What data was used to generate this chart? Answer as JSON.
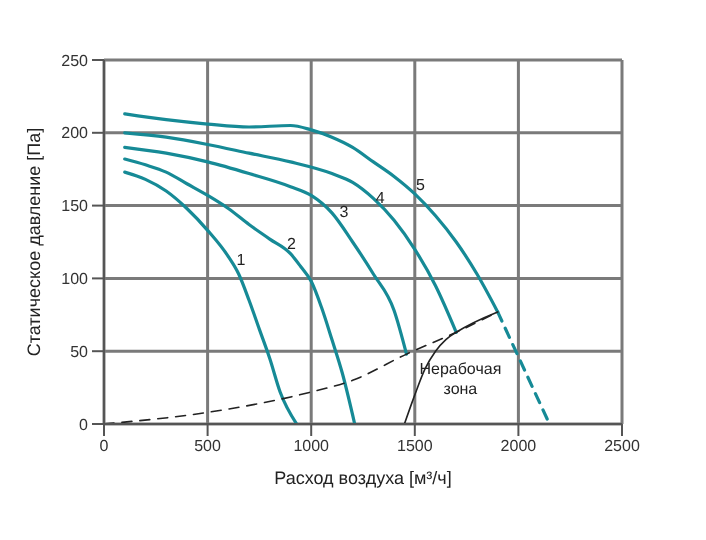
{
  "chart_data": {
    "type": "line",
    "xlabel": "Расход воздуха [м³/ч]",
    "ylabel": "Статическое давление [Па]",
    "xlim": [
      0,
      2500
    ],
    "xticks": [
      0,
      500,
      1000,
      1500,
      2000,
      2500
    ],
    "ylim": [
      0,
      250
    ],
    "yticks": [
      0,
      50,
      100,
      150,
      200,
      250
    ],
    "grid": true,
    "marker": "none",
    "series": [
      {
        "color": "#168a96",
        "x": [
          100,
          200,
          300,
          400,
          500,
          600,
          650,
          700,
          750,
          800,
          850,
          930
        ],
        "values": [
          173,
          168,
          160,
          148,
          133,
          115,
          103,
          85,
          65,
          45,
          22,
          0
        ]
      },
      {
        "color": "#168a96",
        "x": [
          100,
          200,
          300,
          400,
          500,
          600,
          700,
          800,
          900,
          950,
          1000,
          1050,
          1100,
          1150,
          1210
        ],
        "values": [
          182,
          178,
          173,
          165,
          157,
          148,
          137,
          127,
          117,
          108,
          98,
          80,
          58,
          35,
          0
        ]
      },
      {
        "color": "#168a96",
        "x": [
          100,
          300,
          500,
          700,
          900,
          1000,
          1100,
          1200,
          1300,
          1400,
          1460
        ],
        "values": [
          190,
          186,
          180,
          172,
          163,
          157,
          145,
          125,
          103,
          78,
          48
        ]
      },
      {
        "color": "#168a96",
        "x": [
          100,
          300,
          500,
          700,
          900,
          1100,
          1200,
          1300,
          1400,
          1500,
          1600,
          1700
        ],
        "values": [
          200,
          197,
          192,
          186,
          180,
          172,
          166,
          155,
          140,
          120,
          95,
          63
        ]
      },
      {
        "color": "#168a96",
        "x": [
          100,
          300,
          500,
          700,
          900,
          1000,
          1100,
          1200,
          1300,
          1400,
          1500,
          1600,
          1700,
          1800,
          1900
        ],
        "values": [
          213,
          209,
          206,
          204,
          205,
          202,
          197,
          190,
          180,
          170,
          158,
          143,
          125,
          103,
          77
        ]
      },
      {
        "color": "#168a96",
        "line_style": "dashed",
        "x": [
          1900,
          2150
        ],
        "values": [
          77,
          0
        ]
      },
      {
        "color": "#222222",
        "line_style": "dashed",
        "x": [
          0,
          500,
          1000,
          1200,
          1460,
          1700,
          1900
        ],
        "values": [
          0,
          8,
          22,
          30,
          48,
          63,
          77
        ]
      },
      {
        "color": "#222222",
        "x": [
          1450,
          1500,
          1550,
          1600,
          1650,
          1700,
          1900
        ],
        "values": [
          0,
          20,
          38,
          50,
          58,
          63,
          77
        ]
      }
    ],
    "annotations": [
      {
        "text": "1",
        "x": 661,
        "y": 113
      },
      {
        "text": "2",
        "x": 905,
        "y": 124
      },
      {
        "text": "3",
        "x": 1158,
        "y": 146
      },
      {
        "text": "4",
        "x": 1333,
        "y": 156
      },
      {
        "text": "5",
        "x": 1527,
        "y": 165
      },
      "Нерабочая зона"
    ]
  }
}
